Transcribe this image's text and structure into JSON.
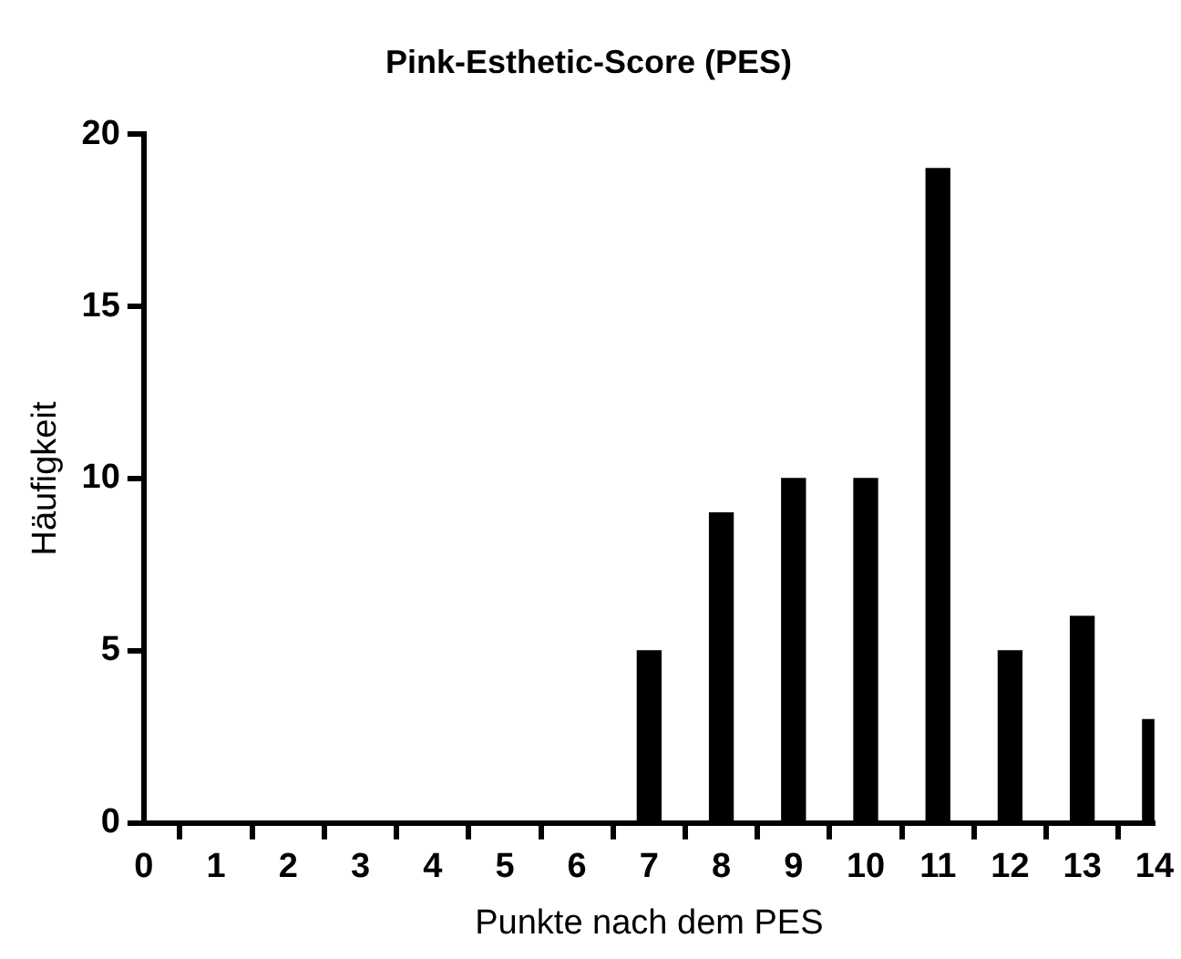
{
  "chart_data": {
    "type": "bar",
    "title": "Pink-Esthetic-Score (PES)",
    "xlabel": "Punkte nach dem PES",
    "ylabel": "Häufigkeit",
    "x": [
      0,
      1,
      2,
      3,
      4,
      5,
      6,
      7,
      8,
      9,
      10,
      11,
      12,
      13,
      14
    ],
    "values": [
      0,
      0,
      0,
      0,
      0,
      0,
      0,
      5,
      9,
      10,
      10,
      19,
      5,
      6,
      3
    ],
    "color": "#000000",
    "xlim": [
      0,
      14
    ],
    "xticks": [
      0,
      1,
      2,
      3,
      4,
      5,
      6,
      7,
      8,
      9,
      10,
      11,
      12,
      13,
      14
    ],
    "ylim": [
      0,
      20
    ],
    "yticks": [
      0,
      5,
      10,
      15,
      20
    ],
    "grid": false,
    "legend": false
  }
}
